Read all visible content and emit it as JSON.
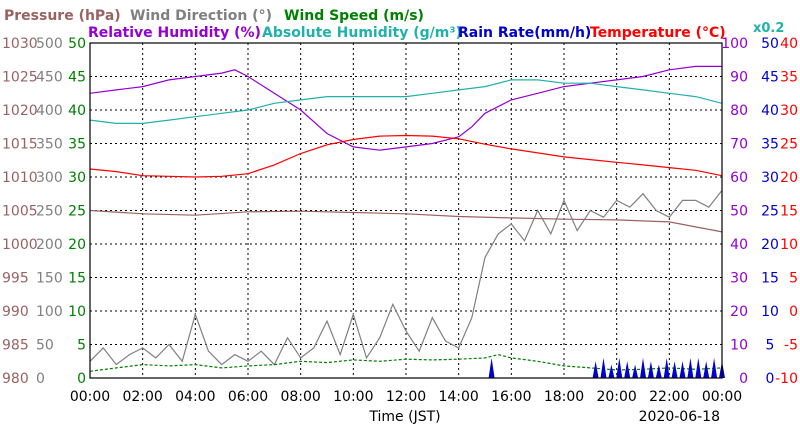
{
  "chart_data": {
    "type": "line",
    "date": "2020-06-18",
    "xlabel": "Time (JST)",
    "x_ticks": [
      "00:00",
      "02:00",
      "04:00",
      "06:00",
      "08:00",
      "10:00",
      "12:00",
      "14:00",
      "16:00",
      "18:00",
      "20:00",
      "22:00",
      "00:00"
    ],
    "grid": true,
    "legend_placement": "top",
    "legend": [
      {
        "text": "Pressure (hPa)",
        "color": "#9a6262"
      },
      {
        "text": "Wind Direction (°)",
        "color": "#808080"
      },
      {
        "text": "Wind Speed (m/s)",
        "color": "#008000"
      },
      {
        "text": "Relative Humidity (%)",
        "color": "#9400d3"
      },
      {
        "text": "Absolute Humidity (g/m³)",
        "color": "#20b2aa"
      },
      {
        "text": "Rain Rate(mm/h)",
        "color": "#0000cd"
      },
      {
        "text": "Temperature (°C)",
        "color": "#ff0000"
      }
    ],
    "rain_scale_label": "x0.2",
    "axes": {
      "pressure": {
        "range": [
          980,
          1030
        ],
        "ticks": [
          "1030",
          "1025",
          "1020",
          "1015",
          "1010",
          "1005",
          "1000",
          "995",
          "990",
          "985",
          "980"
        ],
        "color": "#9a6262"
      },
      "wind_dir": {
        "range": [
          0,
          500
        ],
        "ticks": [
          "500",
          "450",
          "400",
          "350",
          "300",
          "250",
          "200",
          "150",
          "100",
          "50",
          "0"
        ],
        "color": "#808080"
      },
      "wind_speed": {
        "range": [
          0,
          50
        ],
        "ticks": [
          "50",
          "45",
          "40",
          "35",
          "30",
          "25",
          "20",
          "15",
          "10",
          "5",
          "0"
        ],
        "color": "#008000"
      },
      "humidity": {
        "range": [
          0,
          100
        ],
        "ticks": [
          "100",
          "90",
          "80",
          "70",
          "60",
          "50",
          "40",
          "30",
          "20",
          "10",
          "0"
        ],
        "color": "#9400d3"
      },
      "rain": {
        "range": [
          0,
          50
        ],
        "ticks": [
          "50",
          "45",
          "40",
          "35",
          "30",
          "25",
          "20",
          "15",
          "10",
          "5",
          "0"
        ],
        "color": "#0000cd"
      },
      "temperature": {
        "range": [
          -10,
          40
        ],
        "ticks": [
          "40",
          "35",
          "30",
          "25",
          "20",
          "15",
          "10",
          "5",
          "0",
          "-5",
          "-10"
        ],
        "color": "#ff0000"
      }
    },
    "series": [
      {
        "name": "Relative Humidity (%)",
        "axis": "humidity",
        "color": "#9400d3",
        "x": [
          0,
          1,
          2,
          3,
          4,
          5,
          5.5,
          6,
          7,
          8,
          9,
          10,
          11,
          12,
          13,
          14,
          14.5,
          15,
          16,
          17,
          18,
          19,
          20,
          21,
          22,
          23,
          24
        ],
        "y": [
          85,
          86,
          87,
          89,
          90,
          91,
          92,
          90,
          85,
          80,
          73,
          69,
          68,
          69,
          70,
          72,
          75,
          79,
          83,
          85,
          87,
          88,
          89,
          90,
          92,
          93,
          93
        ]
      },
      {
        "name": "Absolute Humidity (g/m³)",
        "axis": "humidity",
        "color": "#20b2aa",
        "x": [
          0,
          1,
          2,
          3,
          4,
          5,
          6,
          7,
          8,
          9,
          10,
          11,
          12,
          13,
          14,
          15,
          16,
          17,
          18,
          19,
          20,
          21,
          22,
          23,
          24
        ],
        "y": [
          77,
          76,
          76,
          77,
          78,
          79,
          80,
          82,
          83,
          84,
          84,
          84,
          84,
          85,
          86,
          87,
          89,
          89,
          88,
          88,
          87,
          86,
          85,
          84,
          82
        ]
      },
      {
        "name": "Temperature (°C)",
        "axis": "temperature",
        "color": "#ff0000",
        "x": [
          0,
          1,
          2,
          3,
          4,
          5,
          6,
          7,
          8,
          9,
          10,
          11,
          12,
          13,
          14,
          15,
          16,
          17,
          18,
          19,
          20,
          21,
          22,
          23,
          24
        ],
        "y": [
          21.2,
          20.8,
          20.2,
          20.1,
          20.0,
          20.1,
          20.5,
          21.8,
          23.5,
          24.8,
          25.6,
          26.1,
          26.2,
          26.1,
          25.7,
          24.9,
          24.2,
          23.6,
          23.0,
          22.6,
          22.2,
          21.8,
          21.4,
          21.0,
          20.2
        ]
      },
      {
        "name": "Pressure (hPa)",
        "axis": "pressure",
        "color": "#9a6262",
        "x": [
          0,
          2,
          4,
          6,
          8,
          10,
          12,
          14,
          16,
          18,
          20,
          22,
          24
        ],
        "y": [
          1005.0,
          1004.5,
          1004.3,
          1004.8,
          1004.9,
          1004.7,
          1004.5,
          1004.1,
          1003.9,
          1003.7,
          1003.6,
          1003.3,
          1001.8
        ]
      },
      {
        "name": "Wind Direction (°)",
        "axis": "wind_dir",
        "color": "#808080",
        "x": [
          0,
          0.5,
          1,
          1.5,
          2,
          2.5,
          3,
          3.5,
          4,
          4.5,
          5,
          5.5,
          6,
          6.5,
          7,
          7.5,
          8,
          8.5,
          9,
          9.5,
          10,
          10.5,
          11,
          11.5,
          12,
          12.5,
          13,
          13.5,
          14,
          14.5,
          15,
          15.5,
          16,
          16.5,
          17,
          17.5,
          18,
          18.5,
          19,
          19.5,
          20,
          20.5,
          21,
          21.5,
          22,
          22.5,
          23,
          23.5,
          24
        ],
        "y": [
          25,
          45,
          20,
          35,
          45,
          30,
          50,
          25,
          95,
          40,
          20,
          35,
          25,
          40,
          20,
          60,
          30,
          45,
          85,
          35,
          95,
          30,
          60,
          110,
          70,
          40,
          90,
          55,
          45,
          90,
          180,
          215,
          230,
          205,
          250,
          215,
          265,
          220,
          250,
          240,
          265,
          255,
          275,
          250,
          240,
          265,
          265,
          255,
          280
        ]
      },
      {
        "name": "Wind Speed (m/s)",
        "axis": "wind_speed",
        "color": "#008000",
        "x": [
          0,
          1,
          2,
          3,
          4,
          5,
          6,
          7,
          8,
          9,
          10,
          11,
          12,
          13,
          14,
          15,
          15.5,
          16,
          17,
          18,
          19,
          20,
          21,
          22,
          23,
          24
        ],
        "y": [
          1.0,
          1.5,
          2.0,
          1.8,
          2.0,
          1.5,
          1.8,
          2.0,
          2.5,
          2.3,
          2.7,
          2.5,
          2.8,
          2.7,
          2.8,
          3.0,
          3.5,
          3.0,
          2.5,
          1.8,
          1.5,
          1.2,
          1.3,
          1.5,
          1.3,
          1.5
        ]
      },
      {
        "name": "Rain Rate(mm/h)",
        "axis": "rain",
        "color": "#0000cd",
        "type": "bar",
        "x": [
          15.25,
          19.2,
          19.5,
          19.8,
          20.1,
          20.4,
          20.7,
          21.0,
          21.3,
          21.6,
          21.9,
          22.2,
          22.5,
          22.8,
          23.1,
          23.4,
          23.7,
          24.0
        ],
        "y": [
          3.0,
          2.5,
          3.0,
          2.0,
          3.0,
          2.5,
          2.0,
          3.0,
          2.5,
          2.0,
          3.0,
          2.5,
          2.5,
          3.0,
          3.0,
          2.5,
          3.0,
          2.5
        ]
      }
    ]
  }
}
